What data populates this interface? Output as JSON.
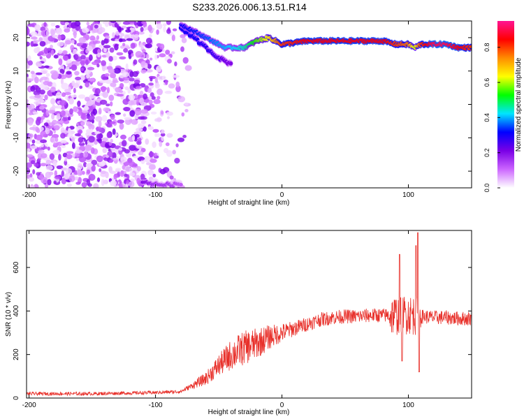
{
  "title": "S233.2026.006.13.51.R14",
  "chart_data": [
    {
      "type": "heatmap",
      "xlabel": "Height of straight line (km)",
      "ylabel": "Frequency (Hz)",
      "xlim": [
        -202,
        150
      ],
      "ylim": [
        -25,
        25
      ],
      "x_ticks": [
        -200,
        -100,
        0,
        100
      ],
      "y_ticks": [
        20,
        10,
        0,
        -10,
        -20
      ],
      "grid": false,
      "colorbar": {
        "label": "Normalized spectral amplitude",
        "range": [
          0,
          0.95
        ],
        "ticks": [
          0.0,
          0.2,
          0.4,
          0.6,
          0.8
        ],
        "colors": [
          "#ffffff",
          "#cc66ff",
          "#7a00e6",
          "#0000ff",
          "#00e5ff",
          "#00ff00",
          "#ffff00",
          "#ff8c00",
          "#ff0000",
          "#ff1493"
        ]
      },
      "ridge": {
        "x": [
          -80,
          -60,
          -45,
          -30,
          -20,
          -10,
          0,
          20,
          40,
          60,
          80,
          90,
          100,
          105,
          110,
          120,
          130,
          140,
          150
        ],
        "freq": [
          24,
          20,
          17,
          17,
          19,
          20,
          18,
          19,
          19,
          19,
          19,
          18,
          18,
          17,
          18,
          18,
          18,
          17,
          17
        ],
        "amplitude": [
          0.3,
          0.35,
          0.4,
          0.45,
          0.55,
          0.65,
          0.8,
          0.85,
          0.85,
          0.85,
          0.85,
          0.8,
          0.75,
          0.6,
          0.8,
          0.9,
          0.9,
          0.85,
          0.8
        ]
      },
      "descending_branch": {
        "x": [
          -80,
          -70,
          -60,
          -50,
          -45,
          -40
        ],
        "freq": [
          23,
          20,
          17,
          14,
          13,
          12
        ],
        "amplitude": [
          0.3,
          0.3,
          0.28,
          0.25,
          0.22,
          0.2
        ]
      },
      "low_band": {
        "x": [
          -110,
          -100,
          -90,
          -80
        ],
        "freq": [
          -23,
          -24,
          -24,
          -24
        ],
        "amplitude": [
          0.2,
          0.15,
          0.15,
          0.12
        ]
      },
      "noise_region": {
        "x": [
          -202,
          -72
        ],
        "freq": [
          -25,
          25
        ],
        "amplitude": [
          0.02,
          0.22
        ]
      }
    },
    {
      "type": "line",
      "xlabel": "Height of straight line (km)",
      "ylabel": "SNR (10 * v/v)",
      "xlim": [
        -202,
        150
      ],
      "ylim": [
        0,
        770
      ],
      "x_ticks": [
        -200,
        -100,
        0,
        100
      ],
      "y_ticks": [
        0,
        200,
        400,
        600
      ],
      "grid": false,
      "series": [
        {
          "color": "#e8302a",
          "x": [
            -202,
            -150,
            -100,
            -80,
            -70,
            -60,
            -50,
            -40,
            -30,
            -20,
            -10,
            0,
            10,
            20,
            30,
            40,
            50,
            60,
            70,
            80,
            90,
            100,
            110,
            120,
            130,
            140,
            150
          ],
          "y": [
            20,
            20,
            25,
            30,
            60,
            90,
            150,
            200,
            230,
            250,
            280,
            300,
            320,
            340,
            360,
            370,
            375,
            375,
            380,
            380,
            380,
            385,
            375,
            370,
            370,
            365,
            365
          ]
        }
      ],
      "spikes": [
        {
          "x": 93,
          "y": 660
        },
        {
          "x": 95,
          "y": 170
        },
        {
          "x": 106,
          "y": 700
        },
        {
          "x": 107.5,
          "y": 760
        },
        {
          "x": 108.5,
          "y": 120
        }
      ]
    }
  ]
}
